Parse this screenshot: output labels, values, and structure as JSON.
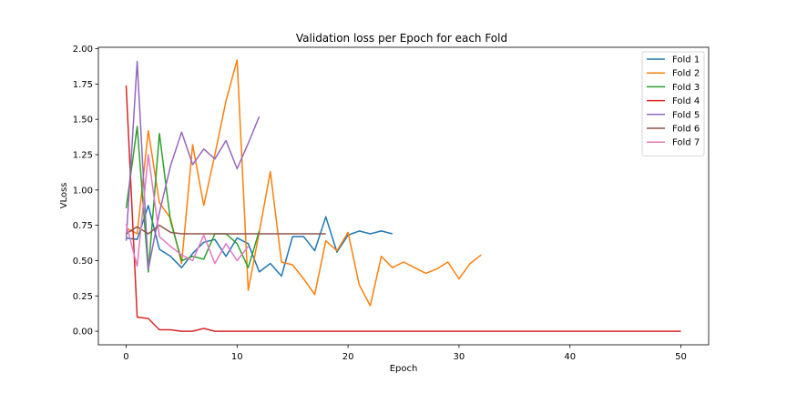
{
  "chart_data": {
    "type": "line",
    "title": "Validation loss per Epoch for each Fold",
    "xlabel": "Epoch",
    "ylabel": "VLoss",
    "xlim": [
      -2.5,
      52.5
    ],
    "ylim": [
      -0.096,
      2.01
    ],
    "xticks": [
      0,
      10,
      20,
      30,
      40,
      50
    ],
    "yticks": [
      0.0,
      0.25,
      0.5,
      0.75,
      1.0,
      1.25,
      1.5,
      1.75,
      2.0
    ],
    "ytick_labels": [
      "0.00",
      "0.25",
      "0.50",
      "0.75",
      "1.00",
      "1.25",
      "1.50",
      "1.75",
      "2.00"
    ],
    "grid": false,
    "legend_position": "top-right",
    "series": [
      {
        "name": "Fold 1",
        "color": "#1f77b4",
        "values": [
          0.66,
          0.65,
          0.89,
          0.58,
          0.53,
          0.45,
          0.55,
          0.63,
          0.65,
          0.53,
          0.66,
          0.62,
          0.42,
          0.48,
          0.39,
          0.67,
          0.67,
          0.57,
          0.81,
          0.56,
          0.68,
          0.71,
          0.69,
          0.71,
          0.69
        ]
      },
      {
        "name": "Fold 2",
        "color": "#ff7f0e",
        "values": [
          0.73,
          0.69,
          1.42,
          0.91,
          0.8,
          0.48,
          1.32,
          0.89,
          1.25,
          1.63,
          1.92,
          0.29,
          0.7,
          1.13,
          0.49,
          0.47,
          0.37,
          0.26,
          0.64,
          0.57,
          0.7,
          0.33,
          0.18,
          0.53,
          0.45,
          0.49,
          0.45,
          0.41,
          0.44,
          0.49,
          0.37,
          0.48,
          0.54
        ]
      },
      {
        "name": "Fold 3",
        "color": "#2ca02c",
        "values": [
          0.87,
          1.45,
          0.42,
          1.4,
          0.78,
          0.5,
          0.53,
          0.51,
          0.69,
          0.69,
          0.62,
          0.45,
          0.71
        ]
      },
      {
        "name": "Fold 4",
        "color": "#d62728",
        "values": [
          1.74,
          0.1,
          0.09,
          0.01,
          0.01,
          0.0,
          0.0,
          0.02,
          0.0,
          0.0,
          0.0,
          0.0,
          0.0,
          0.0,
          0.0,
          0.0,
          0.0,
          0.0,
          0.0,
          0.0,
          0.0,
          0.0,
          0.0,
          0.0,
          0.0,
          0.0,
          0.0,
          0.0,
          0.0,
          0.0,
          0.0,
          0.0,
          0.0,
          0.0,
          0.0,
          0.0,
          0.0,
          0.0,
          0.0,
          0.0,
          0.0,
          0.0,
          0.0,
          0.0,
          0.0,
          0.0,
          0.0,
          0.0,
          0.0,
          0.0,
          0.0
        ]
      },
      {
        "name": "Fold 5",
        "color": "#9467bd",
        "values": [
          0.64,
          1.91,
          0.44,
          0.84,
          1.17,
          1.41,
          1.18,
          1.29,
          1.22,
          1.35,
          1.15,
          1.33,
          1.52
        ]
      },
      {
        "name": "Fold 6",
        "color": "#8c564b",
        "values": [
          0.69,
          0.74,
          0.69,
          0.75,
          0.7,
          0.69,
          0.69,
          0.69,
          0.69,
          0.69,
          0.69,
          0.69,
          0.69,
          0.69,
          0.69,
          0.69,
          0.69,
          0.69,
          0.69
        ]
      },
      {
        "name": "Fold 7",
        "color": "#e377c2",
        "values": [
          0.76,
          0.46,
          1.25,
          0.67,
          0.6,
          0.54,
          0.5,
          0.68,
          0.48,
          0.62,
          0.5,
          0.6
        ]
      }
    ]
  }
}
